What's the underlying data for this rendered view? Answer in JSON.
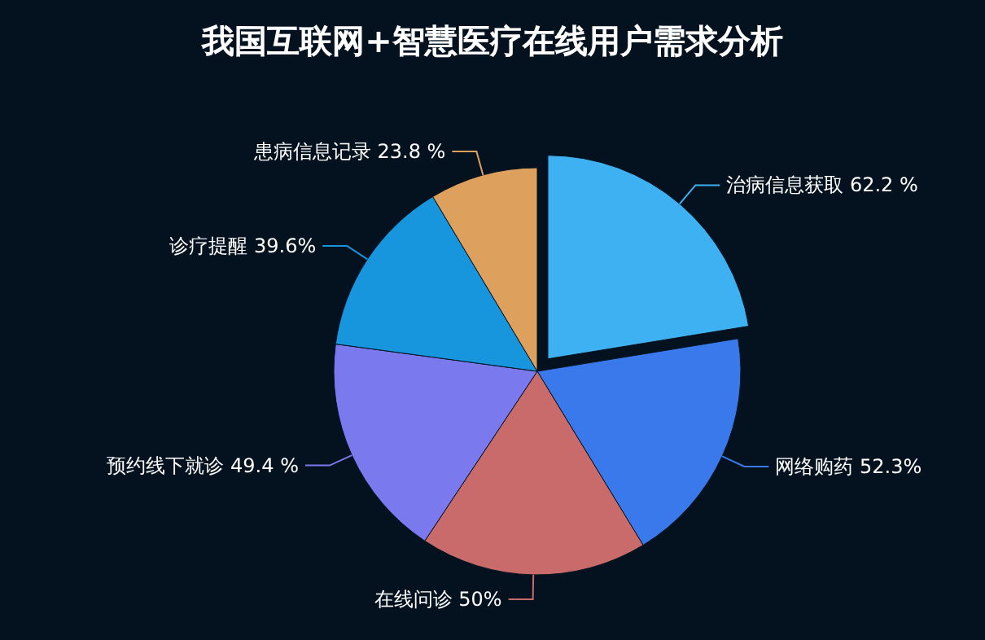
{
  "chart_data": {
    "type": "pie",
    "title": "我国互联网+智慧医疗在线用户需求分析",
    "categories": [
      "治病信息获取",
      "网络购药",
      "在线问诊",
      "预约线下就诊",
      "诊疗提醒",
      "患病信息记录"
    ],
    "values": [
      62.2,
      52.3,
      50,
      49.4,
      39.6,
      23.8
    ],
    "value_labels": [
      "62.2 %",
      "52.3%",
      "50%",
      "49.4 %",
      "39.6%",
      "23.8 %"
    ],
    "colors": [
      "#3eb1f2",
      "#3a79ec",
      "#c96b6b",
      "#7a79ee",
      "#1795dd",
      "#dea05d"
    ]
  }
}
